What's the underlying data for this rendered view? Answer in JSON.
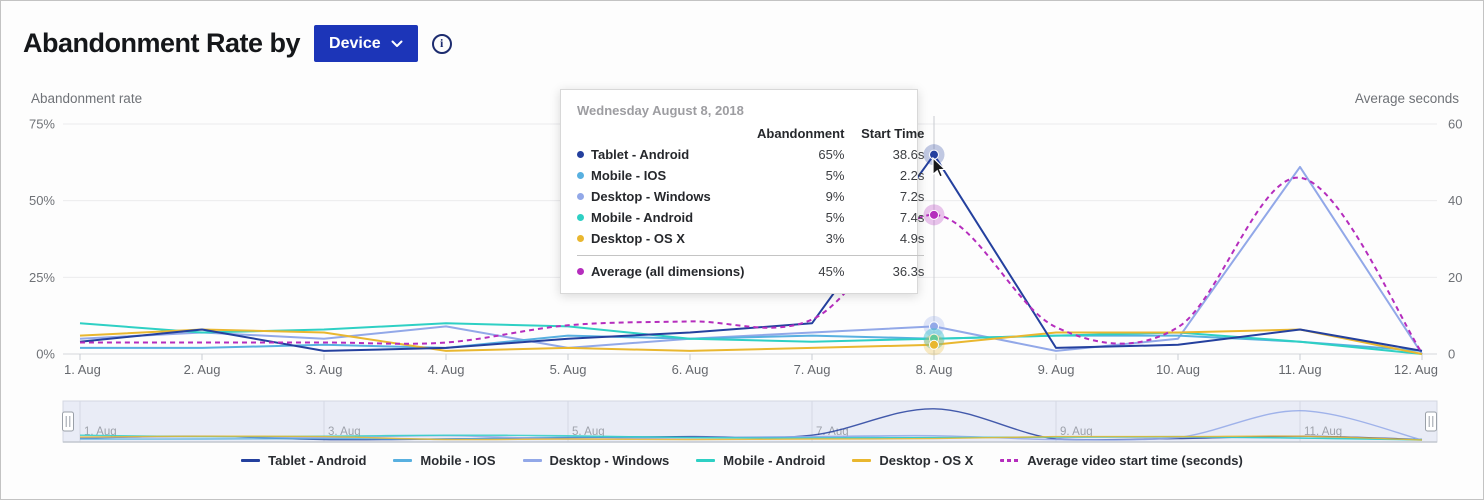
{
  "header": {
    "title": "Abandonment Rate by",
    "dropdown": {
      "label": "Device"
    },
    "info_icon": "info-icon"
  },
  "chart_data": {
    "type": "line",
    "title": "Abandonment Rate by Device",
    "categories": [
      "1. Aug",
      "2. Aug",
      "3. Aug",
      "4. Aug",
      "5. Aug",
      "6. Aug",
      "7. Aug",
      "8. Aug",
      "9. Aug",
      "10. Aug",
      "11. Aug",
      "12. Aug"
    ],
    "left_axis": {
      "label": "Abandonment rate",
      "max": 75,
      "ticks": [
        {
          "value": 75,
          "label": "75%"
        },
        {
          "value": 50,
          "label": "50%"
        },
        {
          "value": 25,
          "label": "25%"
        },
        {
          "value": 0,
          "label": "0%"
        }
      ]
    },
    "right_axis": {
      "label": "Average seconds",
      "max": 60,
      "ticks": [
        {
          "value": 60,
          "label": "60"
        },
        {
          "value": 40,
          "label": "40"
        },
        {
          "value": 20,
          "label": "20"
        },
        {
          "value": 0,
          "label": "0"
        }
      ]
    },
    "grid": "horizontal",
    "legend_position": "bottom",
    "highlight_index": 7,
    "series": [
      {
        "name": "Tablet - Android",
        "color": "#24409e",
        "axis": "left",
        "style": "solid",
        "values": [
          4,
          8,
          1,
          2,
          5,
          7,
          10,
          65,
          2,
          3,
          8,
          1
        ]
      },
      {
        "name": "Mobile - IOS",
        "color": "#58b0e0",
        "axis": "left",
        "style": "solid",
        "values": [
          2,
          2,
          3,
          2,
          6,
          5,
          6,
          5,
          6,
          6,
          4,
          1
        ]
      },
      {
        "name": "Desktop - Windows",
        "color": "#92a8e8",
        "axis": "left",
        "style": "solid",
        "values": [
          5,
          7,
          5,
          9,
          2,
          5,
          7,
          9,
          1,
          5,
          61,
          0
        ]
      },
      {
        "name": "Mobile - Android",
        "color": "#2ed0c4",
        "axis": "left",
        "style": "solid",
        "values": [
          10,
          7,
          8,
          10,
          9,
          5,
          4,
          5,
          6,
          7,
          4,
          0
        ]
      },
      {
        "name": "Desktop - OS X",
        "color": "#e9b72f",
        "axis": "left",
        "style": "solid",
        "values": [
          6,
          8,
          7,
          1,
          2,
          1,
          2,
          3,
          7,
          7,
          8,
          0
        ]
      },
      {
        "name": "Average video start time (seconds)",
        "color": "#b52dbd",
        "axis": "right",
        "style": "dashed",
        "smooth": true,
        "values": [
          3,
          3,
          3,
          3,
          7.5,
          8.5,
          9,
          36.3,
          7,
          7,
          46,
          0.3
        ]
      }
    ]
  },
  "tooltip": {
    "date": "Wednesday August 8, 2018",
    "columns": [
      "Abandonment",
      "Start Time"
    ],
    "rows": [
      {
        "name": "Tablet - Android",
        "color": "#24409e",
        "abandonment": "65%",
        "start_time": "38.6s"
      },
      {
        "name": "Mobile - IOS",
        "color": "#58b0e0",
        "abandonment": "5%",
        "start_time": "2.2s"
      },
      {
        "name": "Desktop - Windows",
        "color": "#92a8e8",
        "abandonment": "9%",
        "start_time": "7.2s"
      },
      {
        "name": "Mobile - Android",
        "color": "#2ed0c4",
        "abandonment": "5%",
        "start_time": "7.4s"
      },
      {
        "name": "Desktop - OS X",
        "color": "#e9b72f",
        "abandonment": "3%",
        "start_time": "4.9s"
      }
    ],
    "summary_row": {
      "name": "Average (all dimensions)",
      "color": "#b52dbd",
      "abandonment": "45%",
      "start_time": "36.3s"
    }
  },
  "navigator": {
    "labels": [
      "1. Aug",
      "3. Aug",
      "5. Aug",
      "7. Aug",
      "9. Aug",
      "11. Aug"
    ]
  },
  "colors": {
    "button": "#1c35b8",
    "crosshair": "#c9ccd1",
    "grid": "#ebebed",
    "axis_line": "#d5d8dc",
    "navigator_bg": "#e9ecf6"
  }
}
